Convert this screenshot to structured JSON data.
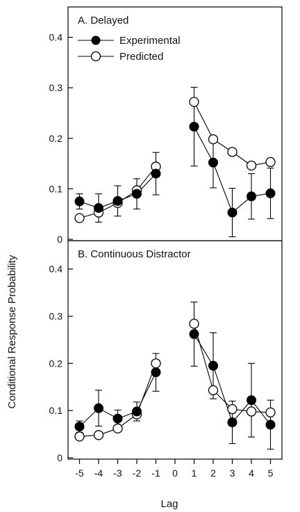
{
  "figure": {
    "ylabel": "Conditional Response Probability",
    "xlabel": "Lag"
  },
  "legend": {
    "experimental": "Experimental",
    "predicted": "Predicted"
  },
  "chart_data": [
    {
      "type": "line",
      "title": "A. Delayed",
      "x": [
        -5,
        -4,
        -3,
        -2,
        -1,
        1,
        2,
        3,
        4,
        5
      ],
      "yticks": [
        0,
        0.1,
        0.2,
        0.3,
        0.4
      ],
      "yticklabels": [
        "0",
        "0.1",
        "0.2",
        "0.3",
        "0.4"
      ],
      "ylim": [
        0,
        0.46
      ],
      "xlim": [
        -5.6,
        5.6
      ],
      "series": [
        {
          "name": "Experimental",
          "marker": "filled-circle",
          "values": [
            0.075,
            0.062,
            0.076,
            0.09,
            0.13,
            0.223,
            0.152,
            0.053,
            0.085,
            0.091
          ],
          "error": [
            0.015,
            0.028,
            0.03,
            0.03,
            0.042,
            0.078,
            0.05,
            0.048,
            0.045,
            0.05
          ]
        },
        {
          "name": "Predicted",
          "marker": "open-circle",
          "values": [
            0.042,
            0.053,
            0.072,
            0.097,
            0.144,
            0.272,
            0.198,
            0.173,
            0.146,
            0.153
          ]
        }
      ]
    },
    {
      "type": "line",
      "title": "B. Continuous Distractor",
      "x": [
        -5,
        -4,
        -3,
        -2,
        -1,
        1,
        2,
        3,
        4,
        5
      ],
      "xticks": [
        -5,
        -4,
        -3,
        -2,
        -1,
        0,
        1,
        2,
        3,
        4,
        5
      ],
      "xticklabels": [
        "-5",
        "-4",
        "-3",
        "-2",
        "-1",
        "0",
        "1",
        "2",
        "3",
        "4",
        "5"
      ],
      "yticks": [
        0,
        0.1,
        0.2,
        0.3,
        0.4
      ],
      "yticklabels": [
        "0",
        "0.1",
        "0.2",
        "0.3",
        "0.4"
      ],
      "ylim": [
        0,
        0.46
      ],
      "xlim": [
        -5.6,
        5.6
      ],
      "series": [
        {
          "name": "Experimental",
          "marker": "filled-circle",
          "values": [
            0.066,
            0.105,
            0.083,
            0.098,
            0.181,
            0.262,
            0.195,
            0.075,
            0.122,
            0.07
          ],
          "error": [
            0.012,
            0.038,
            0.018,
            0.02,
            0.04,
            0.068,
            0.07,
            0.045,
            0.078,
            0.052
          ]
        },
        {
          "name": "Predicted",
          "marker": "open-circle",
          "values": [
            0.045,
            0.048,
            0.062,
            0.092,
            0.2,
            0.284,
            0.143,
            0.103,
            0.098,
            0.096
          ]
        }
      ]
    }
  ]
}
